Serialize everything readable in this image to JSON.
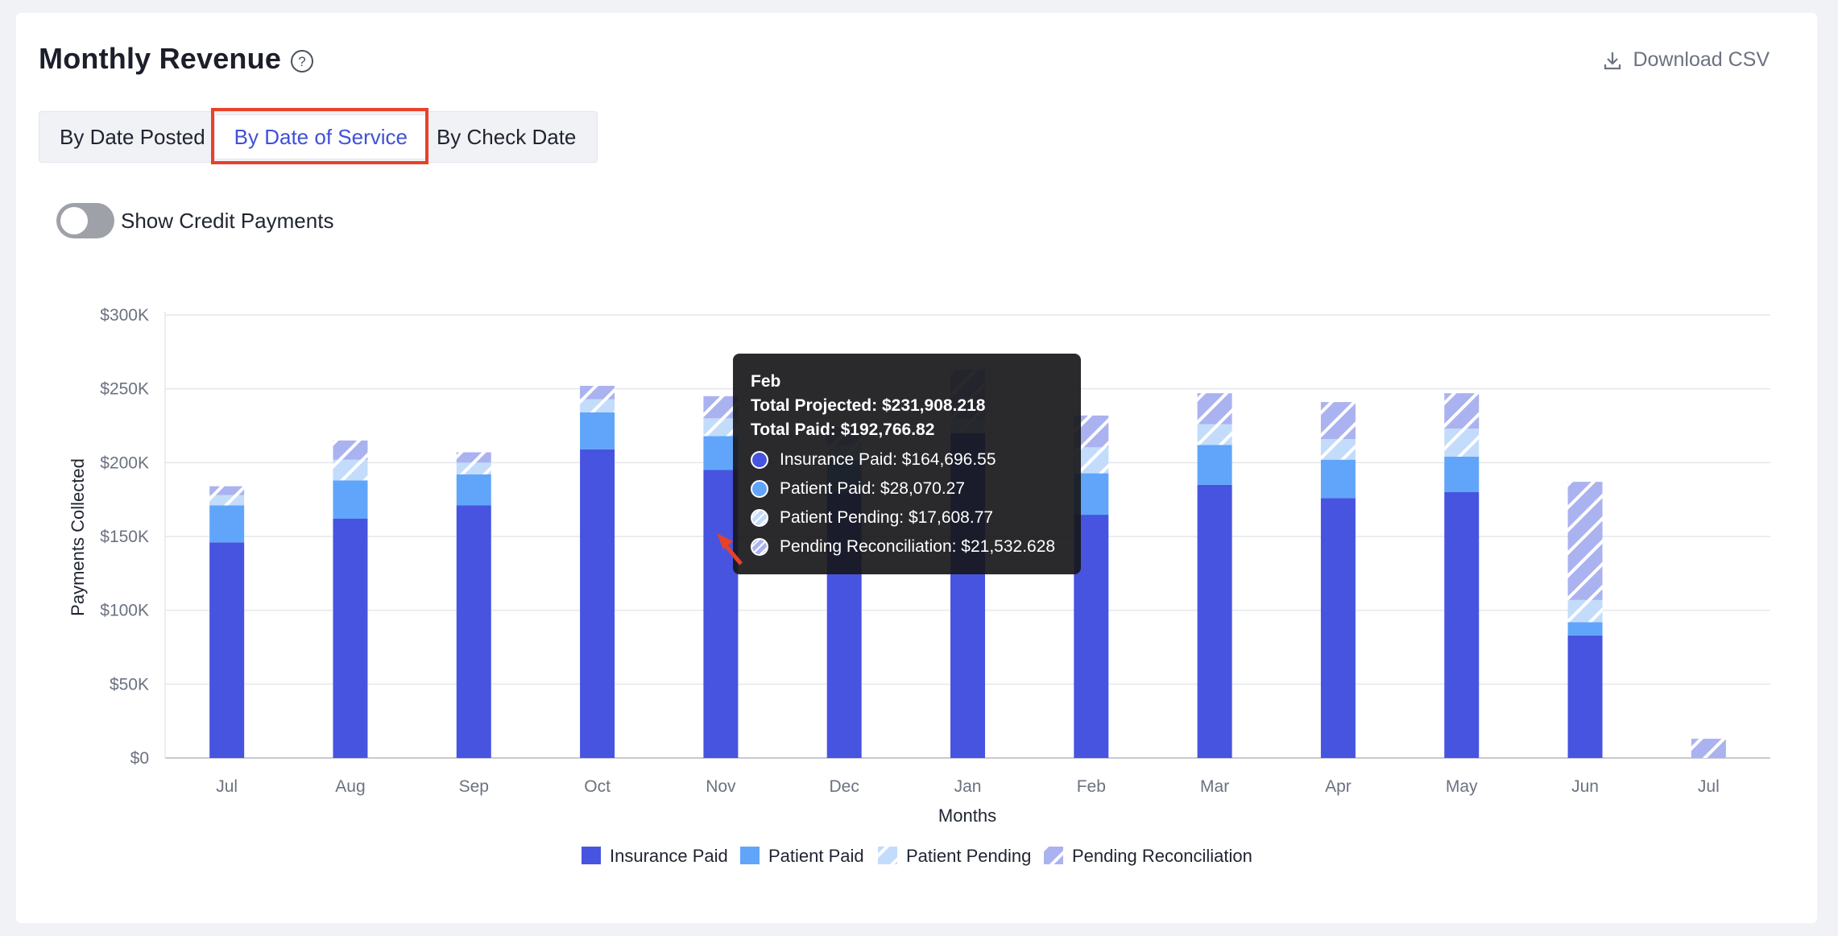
{
  "header": {
    "title": "Monthly Revenue",
    "download_label": "Download CSV"
  },
  "tabs": [
    {
      "label": "By Date Posted",
      "active": false
    },
    {
      "label": "By Date of Service",
      "active": true
    },
    {
      "label": "By Check Date",
      "active": false
    }
  ],
  "toggle": {
    "label": "Show Credit Payments",
    "on": false
  },
  "colors": {
    "insurance_paid": "#4754e0",
    "patient_paid": "#60a5fa",
    "patient_pending": "#c3dcfb",
    "pending_reconciliation": "#aab2f0",
    "highlight": "#e8412a"
  },
  "chart_data": {
    "type": "bar",
    "stacked": true,
    "xlabel": "Months",
    "ylabel": "Payments Collected",
    "ylim": [
      0,
      300000
    ],
    "yticks": [
      "$0",
      "$50K",
      "$100K",
      "$150K",
      "$200K",
      "$250K",
      "$300K"
    ],
    "categories": [
      "Jul",
      "Aug",
      "Sep",
      "Oct",
      "Nov",
      "Dec",
      "Jan",
      "Feb",
      "Mar",
      "Apr",
      "May",
      "Jun",
      "Jul"
    ],
    "series": [
      {
        "name": "Insurance Paid",
        "values": [
          146000,
          162000,
          171000,
          209000,
          195000,
          180000,
          220000,
          164696.55,
          185000,
          176000,
          180000,
          83000,
          0
        ]
      },
      {
        "name": "Patient Paid",
        "values": [
          25000,
          26000,
          21000,
          25000,
          23000,
          22000,
          0,
          28070.27,
          27000,
          26000,
          24000,
          9000,
          0
        ]
      },
      {
        "name": "Patient Pending",
        "values": [
          7000,
          14000,
          8000,
          9000,
          12000,
          10000,
          10000,
          17608.77,
          14000,
          14000,
          19000,
          15000,
          0
        ]
      },
      {
        "name": "Pending Reconciliation",
        "values": [
          6000,
          13000,
          7000,
          9000,
          15000,
          12000,
          33000,
          21532.628,
          21000,
          25000,
          24000,
          80000,
          13000
        ]
      }
    ],
    "legend": [
      "Insurance Paid",
      "Patient Paid",
      "Patient Pending",
      "Pending Reconciliation"
    ],
    "legend_position": "bottom"
  },
  "tooltip": {
    "month": "Feb",
    "total_projected": "Total Projected: $231,908.218",
    "total_paid": "Total Paid: $192,766.82",
    "rows": [
      {
        "label": "Insurance Paid: $164,696.55",
        "color": "#4754e0"
      },
      {
        "label": "Patient Paid: $28,070.27",
        "color": "#60a5fa"
      },
      {
        "label": "Patient Pending: $17,608.77",
        "color": "#c3dcfb"
      },
      {
        "label": "Pending Reconciliation: $21,532.628",
        "color": "#aab2f0"
      }
    ]
  }
}
